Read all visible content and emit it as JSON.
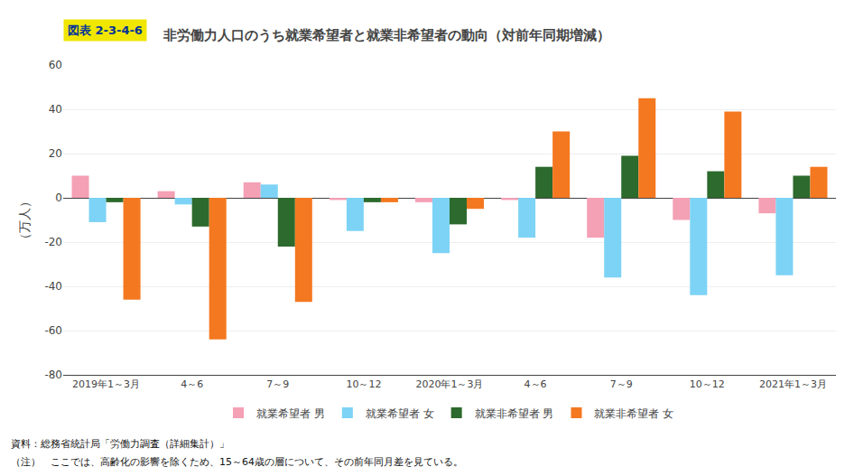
{
  "chart_data": {
    "type": "bar",
    "title": "非労働力人口のうち就業希望者と就業非希望者の動向（対前年同期増減）",
    "ylabel": "（万人）",
    "categories": [
      "2019年1～3月",
      "4～6",
      "7～9",
      "10～12",
      "2020年1～3月",
      "4～6",
      "7～9",
      "10～12",
      "2021年1～3月"
    ],
    "series": [
      {
        "name": "就業希望者 男",
        "color": "#f4a0b5",
        "values": [
          10,
          3,
          7,
          -1,
          -2,
          -1,
          -18,
          -10,
          -7
        ]
      },
      {
        "name": "就業希望者 女",
        "color": "#7dd3f5",
        "values": [
          -11,
          -3,
          6,
          -15,
          -25,
          -18,
          -36,
          -44,
          -35
        ]
      },
      {
        "name": "就業非希望者 男",
        "color": "#2d6a2d",
        "values": [
          -2,
          -13,
          -22,
          -2,
          -12,
          14,
          19,
          12,
          10
        ]
      },
      {
        "name": "就業非希望者 女",
        "color": "#f47820",
        "values": [
          -46,
          -64,
          -47,
          -2,
          -5,
          30,
          45,
          39,
          14
        ]
      }
    ],
    "ylim": [
      -80,
      60
    ],
    "yticks": [
      -80,
      -60,
      -40,
      -20,
      0,
      20,
      40,
      60
    ],
    "grid": true,
    "legend": "bottom",
    "annotations": [
      {
        "text": "図表 2-3-4-6"
      },
      {
        "text": "資料：総務省統計局「労働力調査（詳細集計）」"
      },
      {
        "text": "（注）　ここでは、高齢化の影響を除くため、15～64歳の層について、その前年同月差を見ている。"
      }
    ]
  }
}
